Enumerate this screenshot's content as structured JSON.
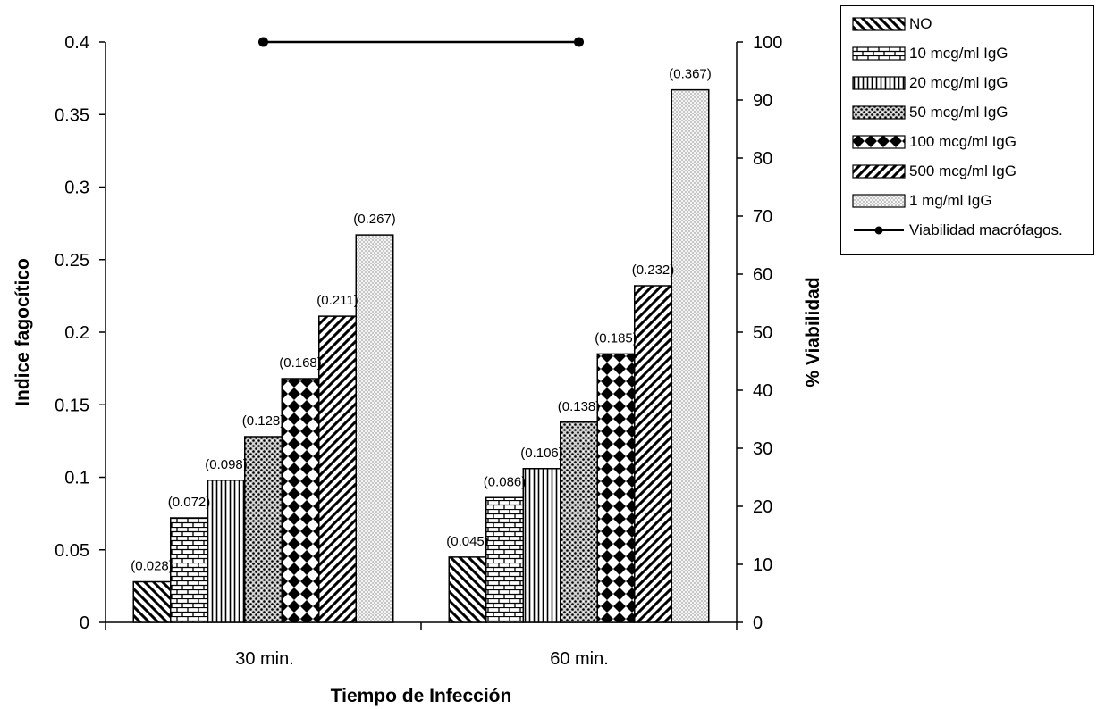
{
  "chart_data": {
    "type": "bar",
    "categories": [
      "30 min.",
      "60 min."
    ],
    "xlabel": "Tiempo de Infección",
    "ylabel": "Indice fagocítico",
    "y2label": "% Viabilidad",
    "ylim": [
      0,
      0.4
    ],
    "y2lim": [
      0,
      100
    ],
    "yticks": [
      "0",
      "0.05",
      "0.1",
      "0.15",
      "0.2",
      "0.25",
      "0.3",
      "0.35",
      "0.4"
    ],
    "y2ticks": [
      "0",
      "10",
      "20",
      "30",
      "40",
      "50",
      "60",
      "70",
      "80",
      "90",
      "100"
    ],
    "legend_position": "right",
    "series": [
      {
        "name": "NO",
        "values": [
          0.028,
          0.045
        ],
        "labels": [
          "(0.028)",
          "(0.045)"
        ],
        "pattern": "diag-down"
      },
      {
        "name": "10 mcg/ml IgG",
        "values": [
          0.072,
          0.086
        ],
        "labels": [
          "(0.072)",
          "(0.086)"
        ],
        "pattern": "brick"
      },
      {
        "name": "20 mcg/ml IgG",
        "values": [
          0.098,
          0.106
        ],
        "labels": [
          "(0.098)",
          "(0.106)"
        ],
        "pattern": "vertical"
      },
      {
        "name": "50 mcg/ml IgG",
        "values": [
          0.128,
          0.138
        ],
        "labels": [
          "(0.128)",
          "(0.138)"
        ],
        "pattern": "dots"
      },
      {
        "name": "100 mcg/ml IgG",
        "values": [
          0.168,
          0.185
        ],
        "labels": [
          "(0.168)",
          "(0.185)"
        ],
        "pattern": "diamond"
      },
      {
        "name": "500 mcg/ml IgG",
        "values": [
          0.211,
          0.232
        ],
        "labels": [
          "(0.211)",
          "(0.232)"
        ],
        "pattern": "diag-up"
      },
      {
        "name": "1 mg/ml IgG",
        "values": [
          0.267,
          0.367
        ],
        "labels": [
          "(0.267)",
          "(0.367)"
        ],
        "pattern": "fine-dots"
      }
    ],
    "line_series": {
      "name": "Viabilidad macrófagos.",
      "axis": "y2",
      "values": [
        100,
        100
      ]
    }
  }
}
